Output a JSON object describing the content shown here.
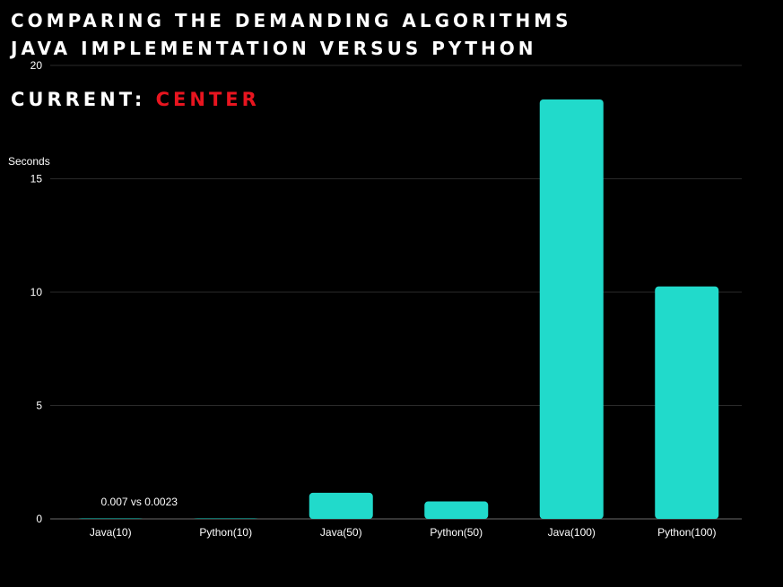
{
  "header": {
    "title_line1": "COMPARING THE DEMANDING ALGORITHMS",
    "title_line2": "JAVA IMPLEMENTATION VERSUS PYTHON",
    "current_label": "CURRENT:",
    "current_value": "CENTER"
  },
  "colors": {
    "bar": "#21dacb",
    "highlight": "#e8151f",
    "grid": "#2a2a2a",
    "text": "#ffffff"
  },
  "chart_data": {
    "type": "bar",
    "ylabel": "Seconds",
    "ylim": [
      0,
      20
    ],
    "yticks": [
      0,
      5,
      10,
      15,
      20
    ],
    "categories": [
      "Java(10)",
      "Python(10)",
      "Java(50)",
      "Python(50)",
      "Java(100)",
      "Python(100)"
    ],
    "values": [
      0.007,
      0.0023,
      1.15,
      0.77,
      18.5,
      10.25
    ],
    "annotations": [
      {
        "category": "Java(10)",
        "text": "0.007 vs 0.0023"
      }
    ]
  }
}
